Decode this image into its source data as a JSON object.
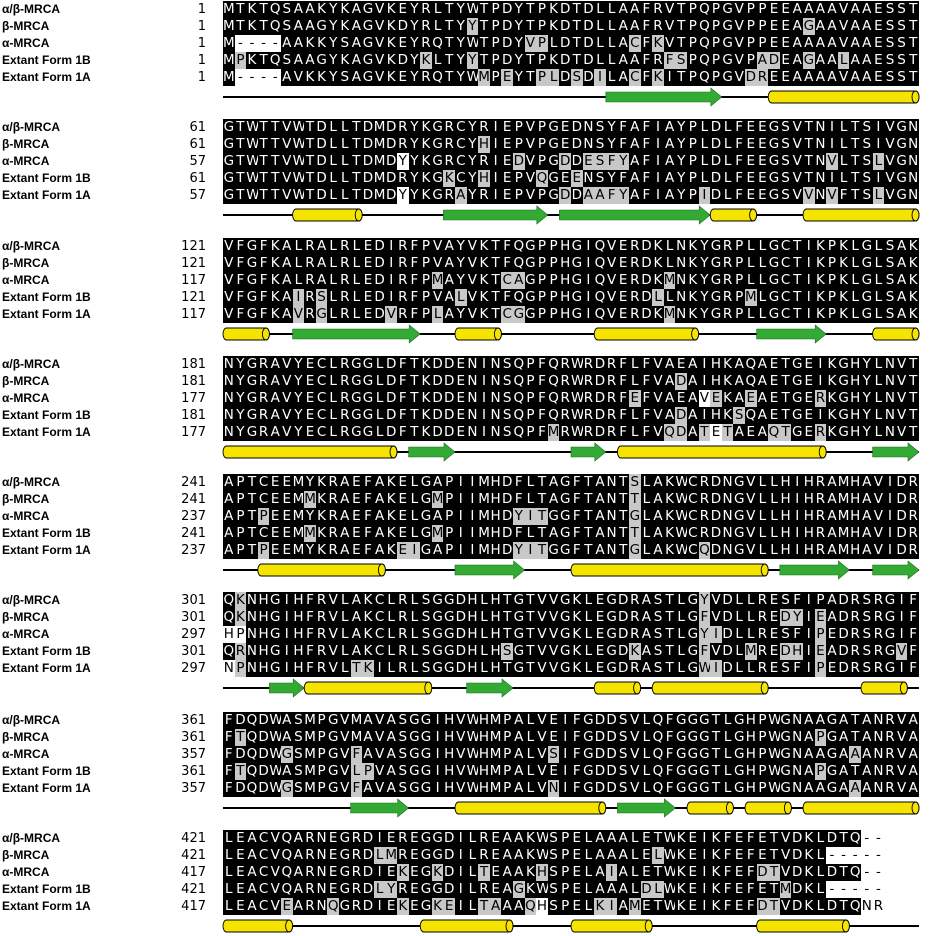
{
  "colors": {
    "identical": "#000000",
    "similar": "#c8c8c8",
    "none": "#ffffff",
    "helix": "#f5e400",
    "strand": "#33aa33",
    "line": "#000000"
  },
  "blocks": [
    {
      "rows": [
        {
          "name": "α/β-MRCA",
          "start": "1",
          "seq": "MTKTQSAAKYKAGVKEYRLTYWTPDYTPKDTDLLAAFRVTPQPGVPPEEAAAAVAAESST",
          "mask": "kkkkkkkkkkkkkkkkkkkkkkkkkkkkkkkkkkkkkkkkkkkkkkkkkkkkkkkkkkkk"
        },
        {
          "name": "β-MRCA",
          "start": "1",
          "seq": "MTKTQSAAGYKAGVKDYRLTYYTPDYTPKDTDLLAAFRVTPQPGVPPEEAGAAVAAESST",
          "mask": "kkkkkkkkkkkkkkkkkkkkkgkkkkkkkkkkkkkkkkkkkkkkkkkkkkgkkkkkkkkk"
        },
        {
          "name": "α-MRCA",
          "start": "1",
          "seq": "M----AAKKYSAGVKEYRQTYWTPDYVPLDTDLLACFKVTPQPGVPPEEAAAAVAAESST",
          "mask": "kwwwwkkkkkkkkkkkkkkkkkkkkkggkkkkkkkgkgkkkkkkkkkkkkkkkkkkkkkk"
        },
        {
          "name": "Extant Form 1B",
          "start": "1",
          "seq": "MPKTQSAAGYKAGVKDYKLTYYTPDYTPKDTDLLAAFRFSPQPGVPADEAGAALAAESST",
          "mask": "kgkkkkkkkkkkkkkkkgkkkgkkkkkkkkkkkkkkkkggkkkkkkggkkgkkgkkkkkk"
        },
        {
          "name": "Extant Form 1A",
          "start": "1",
          "seq": "M----AVKKYSAGVKEYRQTYWMPEYTPLDSDILACFKITPQPGVDREEAAAAVAAESST",
          "mask": "kwwwwkkkkkkkkkkkkkkkkkgkgkkggkgkgkkgkgkkkkkkkggkkkkkkkkkkkkk"
        }
      ],
      "ss": [
        {
          "t": "s",
          "a": 33,
          "b": 42
        },
        {
          "t": "h",
          "a": 47,
          "b": 59
        }
      ]
    },
    {
      "rows": [
        {
          "name": "α/β-MRCA",
          "start": "61",
          "seq": "GTWTTVWTDLLTDMDRYKGRCYRIEPVPGEDNSYFAFIAYPLDLFEEGSVTNILTSIVGN",
          "mask": "kkkkkkkkkkkkkkkkkkkkkkkkkkkkkkkkkkkkkkkkkkkkkkkkkkkkkkkkkkkk"
        },
        {
          "name": "β-MRCA",
          "start": "61",
          "seq": "GTWTTVWTDLLTDMDRYKGRCYHIEPVPGEDNSYFAFIAYPLDLFEEGSVTNILTSIVGN",
          "mask": "kkkkkkkkkkkkkkkkkkkkkkgkkkkkkkkkkkkkkkkkkkkkkkkkkkkkkkkkkkkk"
        },
        {
          "name": "α-MRCA",
          "start": "57",
          "seq": "GTWTTVWTDLLTDMDYYKGRCYRIEDVPGDDESFYAFIAYPLDLFEEGSVTNVLTSLVGN",
          "mask": "kkkkkkkkkkkkkkkwkkkkkkkkkgkkkgkggggkkkkkkkkkkkkkkkkkgkkkgkkk"
        },
        {
          "name": "Extant Form 1B",
          "start": "61",
          "seq": "GTWTTVWTDLLTDMDRYKGKCYHIEPVQGEENSYFAFIAYPLDLFEEGSVTNILTSIVGN",
          "mask": "kkkkkkkkkkkkkkkkkkkgkkgkkkkgkkgkkkkkkkkkkkkkkkkkkkkkkkkkkkkk"
        },
        {
          "name": "Extant Form 1A",
          "start": "57",
          "seq": "GTWTTVWTDLLTDMDYYKGRAYRIEPVPGDDAAFYAFIAYPIDLFEEGSVVNVFTSLVGN",
          "mask": "kkkkkkkkkkkkkkkwkkkkgkkkkkkkkgkggggkkkkkkgkkkkkkkkgkgkkkgkkk"
        }
      ],
      "ss": [
        {
          "t": "h",
          "a": 6,
          "b": 11
        },
        {
          "t": "s",
          "a": 19,
          "b": 27
        },
        {
          "t": "s",
          "a": 29,
          "b": 41
        },
        {
          "t": "h",
          "a": 42,
          "b": 45
        },
        {
          "t": "h",
          "a": 50,
          "b": 59
        }
      ]
    },
    {
      "rows": [
        {
          "name": "α/β-MRCA",
          "start": "121",
          "seq": "VFGFKALRALRLEDIRFPVAYVKTFQGPPHGIQVERDKLNKYGRPLLGCTIKPKLGLSAK",
          "mask": "kkkkkkkkkkkkkkkkkkkkkkkkkkkkkkkkkkkkkkkkkkkkkkkkkkkkkkkkkkkk"
        },
        {
          "name": "β-MRCA",
          "start": "121",
          "seq": "VFGFKALRALRLEDIRFPVAYVKTFQGPPHGIQVERDKLNKYGRPLLGCTIKPKLGLSAK",
          "mask": "kkkkkkkkkkkkkkkkkkkkkkkkkkkkkkkkkkkkkkkkkkkkkkkkkkkkkkkkkkkk"
        },
        {
          "name": "α-MRCA",
          "start": "117",
          "seq": "VFGFKALRALRLEDIRFPMAYVKTCAGPPHGIQVERDKMNKYGRPLLGCTIKPKLGLSAK",
          "mask": "kkkkkkkkkkkkkkkkkkgkkkkkggkkkkkkkkkkkkgkkkkkkkkkkkkkkkkkkkkk"
        },
        {
          "name": "Extant Form 1B",
          "start": "121",
          "seq": "VFGFKAIRSLRLEDIRFPVALVKTFQGPPHGIQVERDLLNKYGRPMLGCTIKPKLGLSAK",
          "mask": "kkkkkkgkgkkkkkkkkkkkgkkkkkkkkkkkkkkkkgkkkkkkkgkkkkkkkkkkkkkk"
        },
        {
          "name": "Extant Form 1A",
          "start": "117",
          "seq": "VFGFKAVRGLRLEDVRFPLAYVKTCGGPPHGIQVERDKMNKYGRPLLGCTIKPKLGLSAK",
          "mask": "kkkkkkgkgkkkkkgkkkgkkkkkggkkkkkkkkkkkkgkkkkkkkkkkkkkkkkkkkkk"
        }
      ],
      "ss": [
        {
          "t": "h",
          "a": 0,
          "b": 3
        },
        {
          "t": "s",
          "a": 6,
          "b": 16
        },
        {
          "t": "h",
          "a": 20,
          "b": 23
        },
        {
          "t": "h",
          "a": 32,
          "b": 40
        },
        {
          "t": "s",
          "a": 46,
          "b": 51
        },
        {
          "t": "h",
          "a": 56,
          "b": 59
        }
      ]
    },
    {
      "rows": [
        {
          "name": "α/β-MRCA",
          "start": "181",
          "seq": "NYGRAVYECLRGGLDFTKDDENINSQPFQRWRDRFLFVAEAIHKAQAETGEIKGHYLNVT",
          "mask": "kkkkkkkkkkkkkkkkkkkkkkkkkkkkkkkkkkkkkkkkkkkkkkkkkkkkkkkkkkkk"
        },
        {
          "name": "β-MRCA",
          "start": "181",
          "seq": "NYGRAVYECLRGGLDFTKDDENINSQPFQRWRDRFLFVADAIHKAQAETGEIKGHYLNVT",
          "mask": "kkkkkkkkkkkkkkkkkkkkkkkkkkkkkkkkkkkkkkkgkkkkkkkkkkkkkkkkkkkk"
        },
        {
          "name": "α-MRCA",
          "start": "177",
          "seq": "NYGRAVYECLRGGLDFTKDDENINSQPFQRWRDRFEFVAEAVEKAEAETGERKGHYLNVT",
          "mask": "kkkkkkkkkkkkkkkkkkkkkkkkkkkkkkkkkkkgkkkkkwgkkgkkkkkgkkkkkkkk"
        },
        {
          "name": "Extant Form 1B",
          "start": "181",
          "seq": "NYGRAVYECLRGGLDFTKDDENINSQPFQRWRDRFLFVADAIHKSQAETGEIKGHYLNVT",
          "mask": "kkkkkkkkkkkkkkkkkkkkkkkkkkkkkkkkkkkkkkkgkkkkgkkkkkkkkkkkkkkk"
        },
        {
          "name": "Extant Form 1A",
          "start": "177",
          "seq": "NYGRAVYECLRGGLDFTKDDENINSQPFMRWRDRFLFVQDATETAEAQTGERKGHYLNVT",
          "mask": "kkkkkkkkkkkkkkkkkkkkkkkkkkkkgkkkkkkkkkggkgwgkkkggkkgkkkkkkkk"
        }
      ],
      "ss": [
        {
          "t": "h",
          "a": 0,
          "b": 14
        },
        {
          "t": "s",
          "a": 16,
          "b": 19
        },
        {
          "t": "s",
          "a": 30,
          "b": 32
        },
        {
          "t": "h",
          "a": 34,
          "b": 51
        },
        {
          "t": "s",
          "a": 56,
          "b": 59
        }
      ]
    },
    {
      "rows": [
        {
          "name": "α/β-MRCA",
          "start": "241",
          "seq": "APTCEEMYKRAEFAKELGAPIIMHDFLTAGFTANTSLAKWCRDNGVLLHIHRAMHAVIDR",
          "mask": "kkkkkkkkkkkkkkkkkkkkkkkkkkkkkkkkkkkgkkkkkkkkkkkkkkkkkkkkkkkk"
        },
        {
          "name": "β-MRCA",
          "start": "241",
          "seq": "APTCEEMMKRAEFAKELGMPIIMHDFLTAGFTANTTLAKWCRDNGVLLHIHRAMHAVIDR",
          "mask": "kkkkkkkgkkkkkkkkkkgkkkkkkkkkkkkkkkkgkkkkkkkkkkkkkkkkkkkkkkkk"
        },
        {
          "name": "α-MRCA",
          "start": "237",
          "seq": "APTPEEMYKRAEFAKELGAPIIMHDYITGGFTANTGLAKWCRDNGVLLHIHRAMHAVIDR",
          "mask": "kkkgkkkkkkkkkkkkkkkkkkkkkgggkkkkkkkgkkkkkkkkkkkkkkkkkkkkkkkk"
        },
        {
          "name": "Extant Form 1B",
          "start": "241",
          "seq": "APTCEEMMKRAEFAKELGMPIIMHDFLTAGFTANTTLAKWCRDNGVLLHIHRAMHAVIDR",
          "mask": "kkkkkkkgkkkkkkkkkkgkkkkkkkkkkkkkkkkgkkkkkkkkkkkkkkkkkkkkkkkk"
        },
        {
          "name": "Extant Form 1A",
          "start": "237",
          "seq": "APTPEEMYKRAEFAKEIGAPIIMHDYITGGFTANTGLAKWCQDNGVLLHIHRAMHAVIDR",
          "mask": "kkkgkkkkkkkkkkkggkkkkkkkkgggkkkkkkkgkkkkkgkkkkkkkkkkkkkkkkkk"
        }
      ],
      "ss": [
        {
          "t": "h",
          "a": 3,
          "b": 13
        },
        {
          "t": "s",
          "a": 20,
          "b": 25
        },
        {
          "t": "h",
          "a": 30,
          "b": 46
        },
        {
          "t": "s",
          "a": 48,
          "b": 53
        },
        {
          "t": "s",
          "a": 56,
          "b": 59
        }
      ]
    },
    {
      "rows": [
        {
          "name": "α/β-MRCA",
          "start": "301",
          "seq": "QKNHGIHFRVLAKCLRLSGGDHLHTGTVVGKLEGDRASTLGYVDLLRESFIPADRSRGIF",
          "mask": "kgkkkkkkkkkkkkkkkkkkkkkkkkkkkkkkkkkkkkkkkgkkkkkkkkkkkkkkkkkk"
        },
        {
          "name": "β-MRCA",
          "start": "301",
          "seq": "QKNHGIHFRVLAKCLRLSGGDHLHTGTVVGKLEGDRASTLGFVDLLREDYIEADRSRGIF",
          "mask": "kgkkkkkkkkkkkkkkkkkkkkkkkkkkkkkkkkkkkkkkkgkkkkkkggkgkkkkkkkk"
        },
        {
          "name": "α-MRCA",
          "start": "297",
          "seq": "HPNHGIHFRVLAKCLRLSGGDHLHTGTVVGKLEGDRASTLGYIDLLRESFIPEDRSRGIF",
          "mask": "wwkkkkkkkkkkkkkkkkkkkkkkkkkkkkkkkkkkkkkkkggkkkkkkkkgkkkkkkkk"
        },
        {
          "name": "Extant Form 1B",
          "start": "301",
          "seq": "QRNHGIHFRVLAKCLRLSGGDHLHSGTVVGKLEGDKASTLGFVDLMREDHIEADRSRGVF",
          "mask": "kgkkkkkkkkkkkkkkkkkkkkkkgkkkkkkkkkkgkkkkkgkkkgkkggkgkkkkkkgk"
        },
        {
          "name": "Extant Form 1A",
          "start": "297",
          "seq": "NPNHGIHFRVLTKILRLSGGDHLHTGTVVGKLEGDRASTLGWIDLLRESFIPEDRSRGIF",
          "mask": "wgkkkkkkkkkggkkkkkkkkkkkkkkkkkkkkkkkkkkkkggkkkkkkkkgkkkkkkkk"
        }
      ],
      "ss": [
        {
          "t": "s",
          "a": 4,
          "b": 6
        },
        {
          "t": "h",
          "a": 7,
          "b": 17
        },
        {
          "t": "s",
          "a": 21,
          "b": 24
        },
        {
          "t": "h",
          "a": 32,
          "b": 35
        },
        {
          "t": "h",
          "a": 37,
          "b": 46
        },
        {
          "t": "h",
          "a": 55,
          "b": 58
        }
      ]
    },
    {
      "rows": [
        {
          "name": "α/β-MRCA",
          "start": "361",
          "seq": "FDQDWASMPGVMAVASGGIHVWHMPALVEIFGDDSVLQFGGGTLGHPWGNAAGATANRVA",
          "mask": "kkkkkkkkkkkkkkkkkkkkkkkkkkkkkkkkkkkkkkkkkkkkkkkkkkkkkkkkkkkk"
        },
        {
          "name": "β-MRCA",
          "start": "361",
          "seq": "FTQDWASMPGVMAVASGGIHVWHMPALVEIFGDDSVLQFGGGTLGHPWGNAPGATANRVA",
          "mask": "kgkkkkkkkkkkkkkkkkkkkkkkkkkkkkkkkkkkkkkkkkkkkkkkkkkgkkkkkkkk"
        },
        {
          "name": "α-MRCA",
          "start": "357",
          "seq": "FDQDWGSMPGVFAVASGGIHVWHMPALVSIFGDDSVLQFGGGTLGHPWGNAAGAAANRVA",
          "mask": "kkkkkgkkkkkgkkkkkkkkkkkkkkkkgkkkkkkkkkkkkkkkkkkkkkkkkkgkkkkk"
        },
        {
          "name": "Extant Form 1B",
          "start": "361",
          "seq": "FTQDWASMPGVLPVASGGIHVWHMPALVEIFGDDSVLQFGGGTLGHPWGNAPGATANRVA",
          "mask": "kgkkkkkkkkkggkkkkkkkkkkkkkkkkkkkkkkkkkkkkkkkkkkkkkkgkkkkkkkk"
        },
        {
          "name": "Extant Form 1A",
          "start": "357",
          "seq": "FDQDWGSMPGVFAVASGGIHVWHMPALVNIFGDDSVLQFGGGTLGHPWGNAAGAAANRVA",
          "mask": "kkkkkgkkkkkgkkkkkkkkkkkkkkkkgkkkkkkkkkkkkkkkkkkkkkkkkkgkkkkk"
        }
      ],
      "ss": [
        {
          "t": "s",
          "a": 11,
          "b": 15
        },
        {
          "t": "h",
          "a": 20,
          "b": 32
        },
        {
          "t": "s",
          "a": 34,
          "b": 38
        },
        {
          "t": "h",
          "a": 40,
          "b": 43
        },
        {
          "t": "h",
          "a": 45,
          "b": 48
        },
        {
          "t": "h",
          "a": 50,
          "b": 59
        }
      ]
    },
    {
      "rows": [
        {
          "name": "α/β-MRCA",
          "start": "421",
          "seq": "LEACVQARNEGRDIEREGGDILREAAKWSPELAAALETWKEIKFEFETVDKLDTQ--",
          "mask": "kkkkkkkkkkkkkkkkkkkkkkkkkkkkkkkkkkkkkkkkkkkkkkkkkkkkkkkww"
        },
        {
          "name": "β-MRCA",
          "start": "421",
          "seq": "LEACVQARNEGRDLMREGGDILREAAKWSPELAAALELWKEIKFEFETVDKL-----",
          "mask": "kkkkkkkkkkkkkggkkkkkkkkkkkkkkkkkkkkkkgkkkkkkkkkkkkkkwwwww"
        },
        {
          "name": "α-MRCA",
          "start": "417",
          "seq": "LEACVQARNEGRDIEKEGKDILTEAAKHSPELAIALETWKEIKFEFDTVDKLDTQ--",
          "mask": "kkkkkkkkkkkkkkkgkkgkkkgkkkkgkkkkkgkkkkkkkkkkkkggkkkkkkkww"
        },
        {
          "name": "Extant Form 1B",
          "start": "421",
          "seq": "LEACVQARNEGRDLYREGGDILREAGKWSPELAAALDLWKEIKFEFETMDKL-----",
          "mask": "kkkkkkkkkkkkkggkkkkkkkkkkgkkkkkkkkkkggkkkkkkkkkkgkkkwwwww"
        },
        {
          "name": "Extant Form 1A",
          "start": "417",
          "seq": "LEACVEARNQGRDIEKEGKEILTAAAQHSPELKIAMETWKEIKFEFDTVDKLDTQNR",
          "mask": "kkkkkgkkkgkkkkkgkkggkkggkkgwkkkkggkgkkkkkkkkkkggkkkkkkkww"
        }
      ],
      "ss": [
        {
          "t": "h",
          "a": 0,
          "b": 5
        },
        {
          "t": "h",
          "a": 17,
          "b": 24
        },
        {
          "t": "h",
          "a": 30,
          "b": 36
        },
        {
          "t": "h",
          "a": 46,
          "b": 53
        }
      ]
    }
  ]
}
